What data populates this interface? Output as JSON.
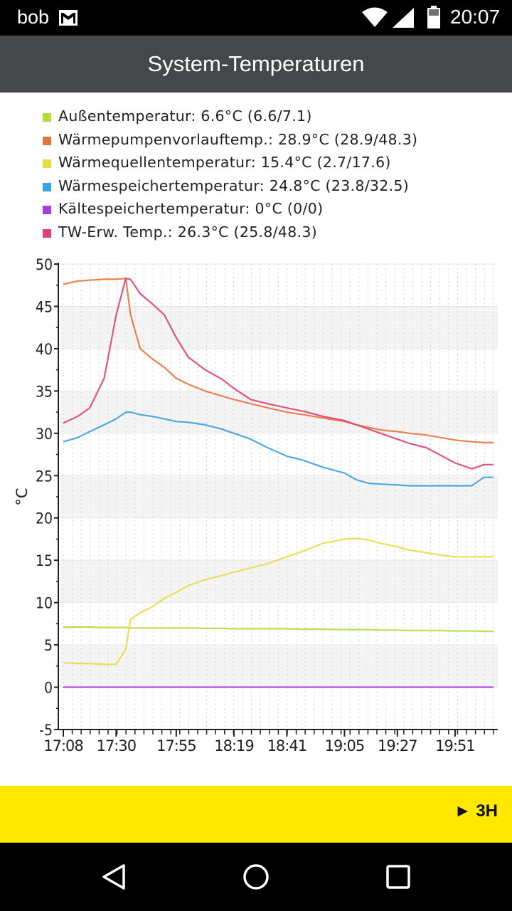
{
  "status_bar": {
    "user": "bob",
    "time": "20:07",
    "icons": [
      "mail-icon",
      "wifi-icon",
      "signal-icon",
      "battery-icon"
    ]
  },
  "title_bar": {
    "title": "System-Temperaturen",
    "background": "#46474a"
  },
  "legend": [
    {
      "label": "Außentemperatur: 6.6°C (6.6/7.1)",
      "color": "#b5dc3c"
    },
    {
      "label": "Wärmepumpenvorlauftemp.: 28.9°C (28.9/48.3)",
      "color": "#e8743b"
    },
    {
      "label": "Wärmequellentemperatur: 15.4°C (2.7/17.6)",
      "color": "#e8dc46"
    },
    {
      "label": "Wärmespeichertemperatur: 24.8°C (23.8/32.5)",
      "color": "#3ba1e0"
    },
    {
      "label": "Kältespeichertemperatur: 0°C (0/0)",
      "color": "#a83ce0"
    },
    {
      "label": "TW-Erw. Temp.: 26.3°C (25.8/48.3)",
      "color": "#e0407a"
    }
  ],
  "chart_data": {
    "type": "line",
    "ylabel": "°C",
    "xlabel": "",
    "ylim": [
      -5,
      50
    ],
    "ytick_labels": [
      "-5",
      "0",
      "5",
      "10",
      "15",
      "20",
      "25",
      "30",
      "35",
      "40",
      "45",
      "50"
    ],
    "xtick_labels": [
      "17:08",
      "17:30",
      "17:55",
      "18:19",
      "18:41",
      "19:05",
      "19:27",
      "19:51"
    ],
    "grid": true,
    "x": [
      "17:08",
      "17:14",
      "17:19",
      "17:25",
      "17:30",
      "17:34",
      "17:36",
      "17:40",
      "17:45",
      "17:50",
      "17:55",
      "18:00",
      "18:07",
      "18:14",
      "18:19",
      "18:26",
      "18:33",
      "18:41",
      "18:48",
      "18:56",
      "19:05",
      "19:10",
      "19:15",
      "19:20",
      "19:27",
      "19:32",
      "19:39",
      "19:45",
      "19:51",
      "19:58",
      "20:03",
      "20:07"
    ],
    "series": [
      {
        "name": "Außentemperatur",
        "color": "#b5dc3c",
        "values": [
          7.1,
          7.1,
          7.1,
          7.05,
          7.05,
          7.05,
          7.0,
          7.0,
          7.0,
          7.0,
          7.0,
          7.0,
          6.95,
          6.95,
          6.9,
          6.9,
          6.9,
          6.9,
          6.85,
          6.85,
          6.8,
          6.8,
          6.8,
          6.75,
          6.75,
          6.7,
          6.7,
          6.7,
          6.65,
          6.65,
          6.6,
          6.6
        ]
      },
      {
        "name": "Wärmepumpenvorlauftemp.",
        "color": "#e8743b",
        "values": [
          47.6,
          48.0,
          48.1,
          48.2,
          48.2,
          48.3,
          44.0,
          40.0,
          38.8,
          37.8,
          36.5,
          35.8,
          35.0,
          34.4,
          34.0,
          33.5,
          33.0,
          32.5,
          32.2,
          31.8,
          31.4,
          31.0,
          30.7,
          30.4,
          30.2,
          30.0,
          29.8,
          29.5,
          29.2,
          29.0,
          28.9,
          28.9
        ]
      },
      {
        "name": "Wärmequellentemperatur",
        "color": "#e8dc46",
        "values": [
          2.9,
          2.8,
          2.8,
          2.7,
          2.7,
          4.5,
          8.0,
          8.8,
          9.5,
          10.5,
          11.2,
          12.0,
          12.7,
          13.2,
          13.6,
          14.1,
          14.6,
          15.4,
          16.1,
          17.0,
          17.5,
          17.6,
          17.4,
          17.0,
          16.6,
          16.2,
          15.9,
          15.6,
          15.4,
          15.4,
          15.4,
          15.4
        ]
      },
      {
        "name": "Wärmespeichertemperatur",
        "color": "#3ba1e0",
        "values": [
          29.0,
          29.5,
          30.2,
          31.0,
          31.7,
          32.5,
          32.5,
          32.2,
          32.0,
          31.7,
          31.4,
          31.3,
          31.0,
          30.5,
          30.0,
          29.3,
          28.3,
          27.3,
          26.8,
          26.0,
          25.3,
          24.5,
          24.1,
          24.0,
          23.9,
          23.8,
          23.8,
          23.8,
          23.8,
          23.8,
          24.8,
          24.8
        ]
      },
      {
        "name": "Kältespeichertemperatur",
        "color": "#a83ce0",
        "values": [
          0,
          0,
          0,
          0,
          0,
          0,
          0,
          0,
          0,
          0,
          0,
          0,
          0,
          0,
          0,
          0,
          0,
          0,
          0,
          0,
          0,
          0,
          0,
          0,
          0,
          0,
          0,
          0,
          0,
          0,
          0,
          0
        ]
      },
      {
        "name": "TW-Erw. Temp.",
        "color": "#e0407a",
        "values": [
          31.2,
          32.0,
          33.0,
          36.5,
          44.0,
          48.3,
          48.2,
          46.5,
          45.3,
          44.0,
          41.3,
          39.0,
          37.5,
          36.4,
          35.3,
          34.0,
          33.5,
          33.0,
          32.6,
          32.0,
          31.5,
          31.0,
          30.5,
          30.0,
          29.3,
          28.8,
          28.3,
          27.4,
          26.5,
          25.8,
          26.3,
          26.3
        ]
      }
    ]
  },
  "footer": {
    "range_label": "► 3H",
    "background": "#ffe800"
  },
  "nav_bar": {
    "icons": [
      "back-icon",
      "home-icon",
      "recents-icon"
    ]
  }
}
